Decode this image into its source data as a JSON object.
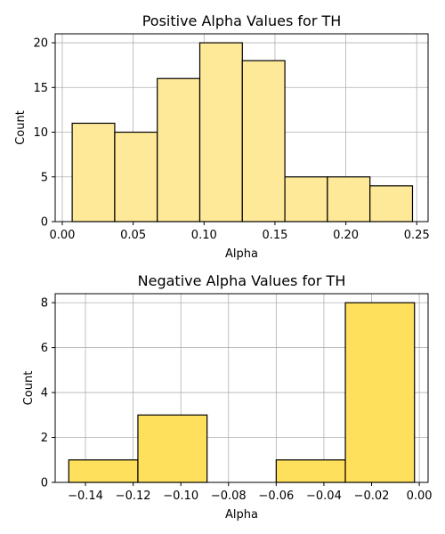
{
  "chart_data": [
    {
      "type": "bar",
      "title": "Positive Alpha Values for TH",
      "xlabel": "Alpha",
      "ylabel": "Count",
      "bin_edges": [
        0.007,
        0.037,
        0.067,
        0.097,
        0.127,
        0.157,
        0.187,
        0.217,
        0.247
      ],
      "values": [
        11,
        10,
        16,
        20,
        18,
        5,
        5,
        4
      ],
      "xlim": [
        -0.005,
        0.258
      ],
      "ylim": [
        0,
        21
      ],
      "xticks": [
        0.0,
        0.05,
        0.1,
        0.15,
        0.2,
        0.25
      ],
      "xtick_labels": [
        "0.00",
        "0.05",
        "0.10",
        "0.15",
        "0.20",
        "0.25"
      ],
      "yticks": [
        0,
        5,
        10,
        15,
        20
      ],
      "ytick_labels": [
        "0",
        "5",
        "10",
        "15",
        "20"
      ],
      "grid": true,
      "bar_color": "#fee999",
      "edge_color": "#000000"
    },
    {
      "type": "bar",
      "title": "Negative Alpha Values for TH",
      "xlabel": "Alpha",
      "ylabel": "Count",
      "bin_edges": [
        -0.147,
        -0.118,
        -0.089,
        -0.06,
        -0.031,
        -0.002
      ],
      "values": [
        1,
        3,
        0,
        1,
        8
      ],
      "xlim": [
        -0.1527,
        0.0037
      ],
      "ylim": [
        0,
        8.4
      ],
      "xticks": [
        -0.14,
        -0.12,
        -0.1,
        -0.08,
        -0.06,
        -0.04,
        -0.02,
        0.0
      ],
      "xtick_labels": [
        "−0.14",
        "−0.12",
        "−0.10",
        "−0.08",
        "−0.06",
        "−0.04",
        "−0.02",
        "0.00"
      ],
      "yticks": [
        0,
        2,
        4,
        6,
        8
      ],
      "ytick_labels": [
        "0",
        "2",
        "4",
        "6",
        "8"
      ],
      "grid": true,
      "bar_color": "#ffe05c",
      "edge_color": "#000000"
    }
  ]
}
